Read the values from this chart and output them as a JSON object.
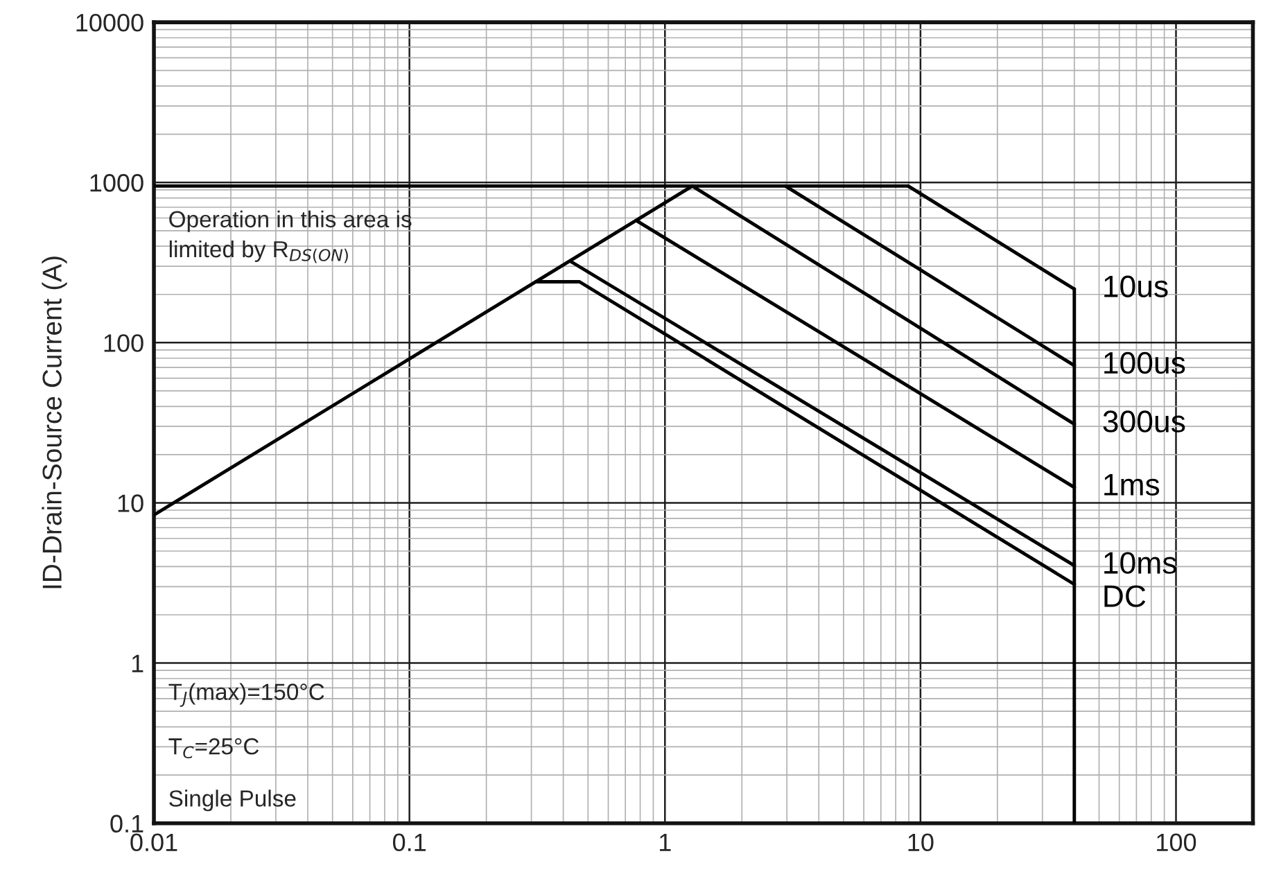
{
  "chart_data": {
    "type": "line",
    "ylabel": "ID-Drain-Source Current (A)",
    "log": "xy",
    "grid": true,
    "xlim": [
      0.01,
      200
    ],
    "xticks": [
      0.01,
      0.1,
      1,
      10,
      100
    ],
    "ylim": [
      0.1,
      10000
    ],
    "yticks": [
      0.1,
      1,
      10,
      100,
      1000,
      10000
    ],
    "annotations": [
      "Operation in this area is\nlimited by R$_{DS(ON)}$",
      "T$_{J}$(max)=150°C",
      "T$_{C}$=25°C",
      "Single Pulse"
    ],
    "series": [
      {
        "color": "#000000",
        "x": [
          0.01,
          1.28
        ],
        "values": [
          8.4,
          950
        ]
      },
      {
        "color": "#000000",
        "x": [
          0.01,
          8.95
        ],
        "values": [
          950,
          950
        ]
      },
      {
        "name": "10us",
        "color": "#000000",
        "x": [
          8.95,
          40
        ],
        "values": [
          950,
          216
        ]
      },
      {
        "name": "100us",
        "color": "#000000",
        "x": [
          2.96,
          40
        ],
        "values": [
          950,
          72
        ]
      },
      {
        "name": "300us",
        "color": "#000000",
        "x": [
          1.28,
          40
        ],
        "values": [
          950,
          31
        ]
      },
      {
        "name": "1ms",
        "color": "#000000",
        "x": [
          0.78,
          40
        ],
        "values": [
          573,
          12.5
        ]
      },
      {
        "name": "10ms",
        "color": "#000000",
        "x": [
          0.428,
          40
        ],
        "values": [
          321,
          4.06
        ]
      },
      {
        "name": "DC",
        "color": "#000000",
        "x": [
          0.313,
          0.463,
          40
        ],
        "values": [
          240,
          240,
          3.1
        ]
      },
      {
        "color": "#000000",
        "x": [
          40,
          40
        ],
        "values": [
          216,
          0.1
        ]
      }
    ]
  }
}
